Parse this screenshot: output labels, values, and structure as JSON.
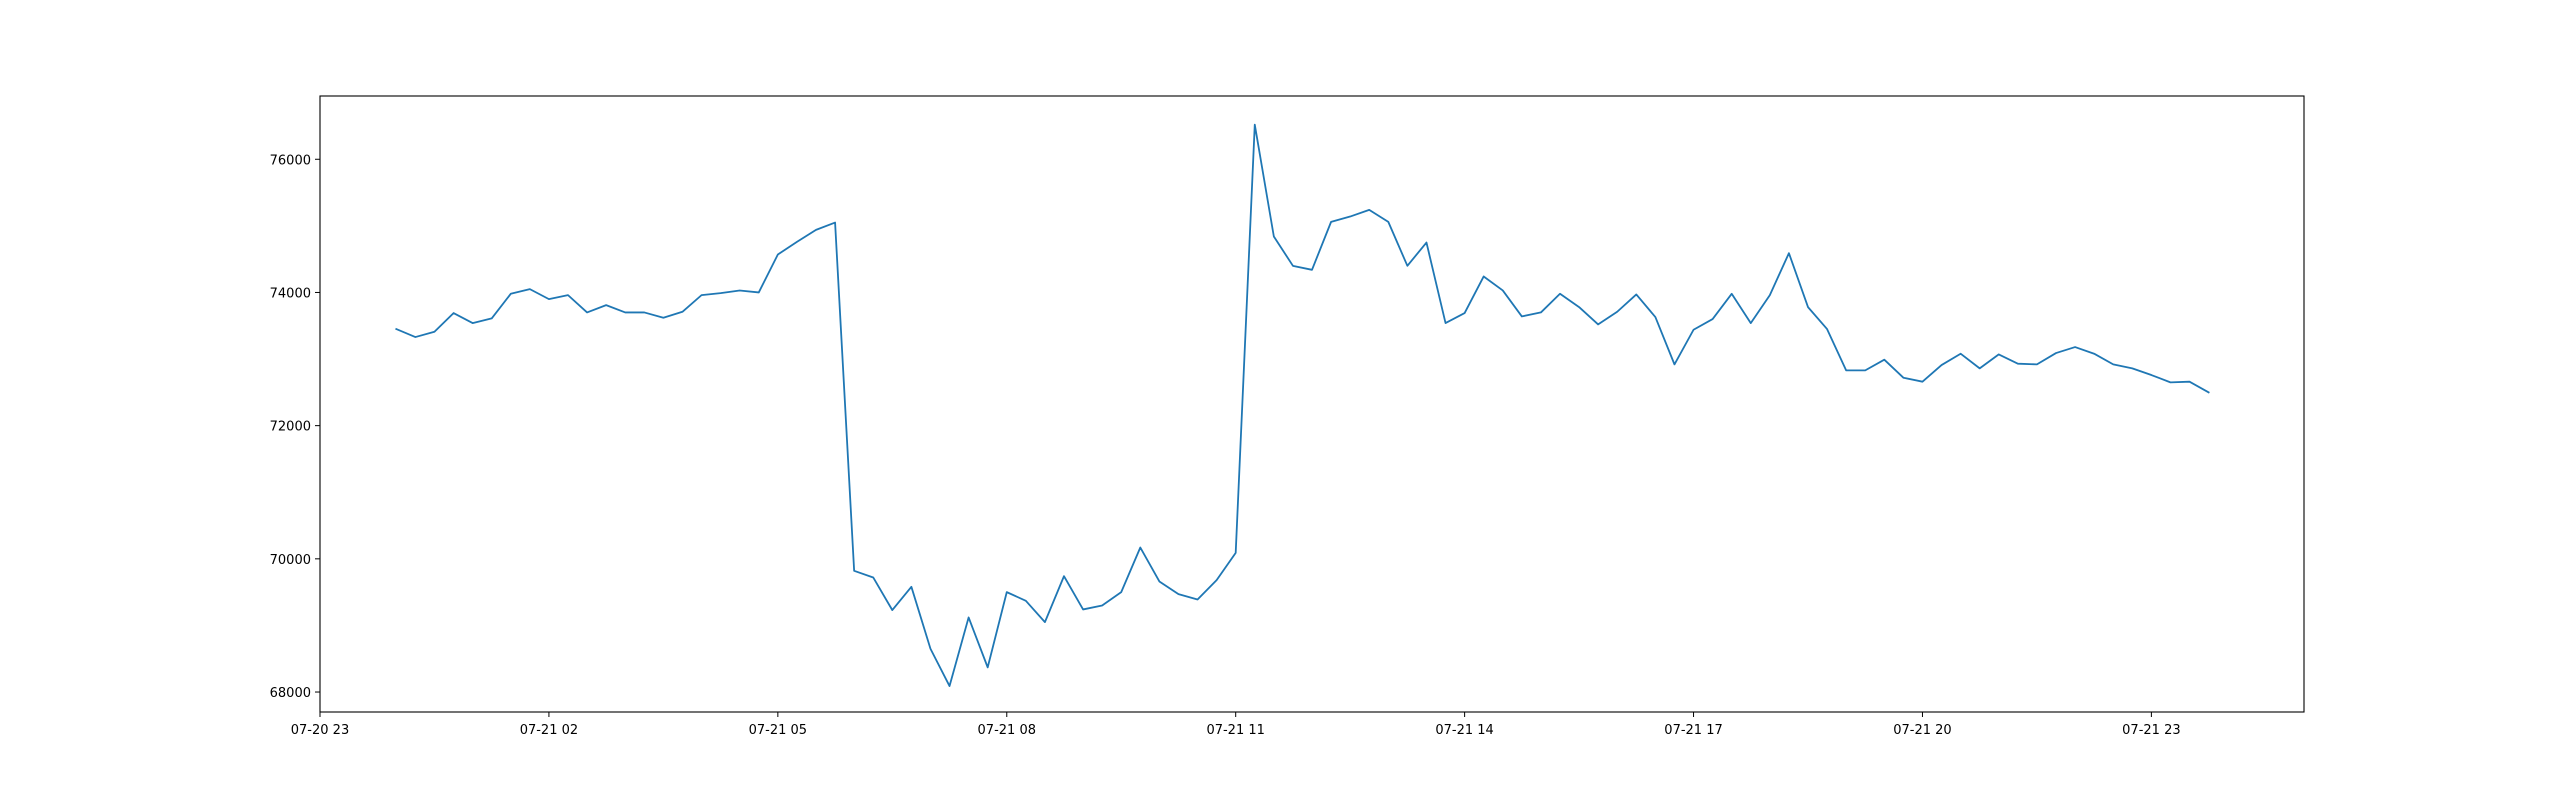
{
  "chart_data": {
    "type": "line",
    "title": "",
    "xlabel": "",
    "ylabel": "",
    "grid": false,
    "legend": "none",
    "line_color": "#1f77b4",
    "xlim": [
      "07-20 23:00",
      "07-22 01:00"
    ],
    "ylim": [
      67700,
      76950
    ],
    "x_ticks": [
      {
        "t": "07-20 23:00",
        "label": "07-20 23"
      },
      {
        "t": "07-21 02:00",
        "label": "07-21 02"
      },
      {
        "t": "07-21 05:00",
        "label": "07-21 05"
      },
      {
        "t": "07-21 08:00",
        "label": "07-21 08"
      },
      {
        "t": "07-21 11:00",
        "label": "07-21 11"
      },
      {
        "t": "07-21 14:00",
        "label": "07-21 14"
      },
      {
        "t": "07-21 17:00",
        "label": "07-21 17"
      },
      {
        "t": "07-21 20:00",
        "label": "07-21 20"
      },
      {
        "t": "07-21 23:00",
        "label": "07-21 23"
      }
    ],
    "y_ticks": [
      {
        "v": 68000,
        "label": "68000"
      },
      {
        "v": 70000,
        "label": "70000"
      },
      {
        "v": 72000,
        "label": "72000"
      },
      {
        "v": 74000,
        "label": "74000"
      },
      {
        "v": 76000,
        "label": "76000"
      }
    ],
    "series": [
      {
        "x": [
          "07-21 00:00",
          "07-21 00:15",
          "07-21 00:30",
          "07-21 00:45",
          "07-21 01:00",
          "07-21 01:15",
          "07-21 01:30",
          "07-21 01:45",
          "07-21 02:00",
          "07-21 02:15",
          "07-21 02:30",
          "07-21 02:45",
          "07-21 03:00",
          "07-21 03:15",
          "07-21 03:30",
          "07-21 03:45",
          "07-21 04:00",
          "07-21 04:15",
          "07-21 04:30",
          "07-21 04:45",
          "07-21 05:00",
          "07-21 05:15",
          "07-21 05:30",
          "07-21 05:45",
          "07-21 06:00",
          "07-21 06:15",
          "07-21 06:30",
          "07-21 06:45",
          "07-21 07:00",
          "07-21 07:15",
          "07-21 07:30",
          "07-21 07:45",
          "07-21 08:00",
          "07-21 08:15",
          "07-21 08:30",
          "07-21 08:45",
          "07-21 09:00",
          "07-21 09:15",
          "07-21 09:30",
          "07-21 09:45",
          "07-21 10:00",
          "07-21 10:15",
          "07-21 10:30",
          "07-21 10:45",
          "07-21 11:00",
          "07-21 11:15",
          "07-21 11:30",
          "07-21 11:45",
          "07-21 12:00",
          "07-21 12:15",
          "07-21 12:30",
          "07-21 12:45",
          "07-21 13:00",
          "07-21 13:15",
          "07-21 13:30",
          "07-21 13:45",
          "07-21 14:00",
          "07-21 14:15",
          "07-21 14:30",
          "07-21 14:45",
          "07-21 15:00",
          "07-21 15:15",
          "07-21 15:30",
          "07-21 15:45",
          "07-21 16:00",
          "07-21 16:15",
          "07-21 16:30",
          "07-21 16:45",
          "07-21 17:00",
          "07-21 17:15",
          "07-21 17:30",
          "07-21 17:45",
          "07-21 18:00",
          "07-21 18:15",
          "07-21 18:30",
          "07-21 18:45",
          "07-21 19:00",
          "07-21 19:15",
          "07-21 19:30",
          "07-21 19:45",
          "07-21 20:00",
          "07-21 20:15",
          "07-21 20:30",
          "07-21 20:45",
          "07-21 21:00",
          "07-21 21:15",
          "07-21 21:30",
          "07-21 21:45",
          "07-21 22:00",
          "07-21 22:15",
          "07-21 22:30",
          "07-21 22:45",
          "07-21 23:00",
          "07-21 23:15",
          "07-21 23:30",
          "07-21 23:45"
        ],
        "y": [
          73450,
          73330,
          73410,
          73690,
          73540,
          73610,
          73980,
          74050,
          73900,
          73960,
          73700,
          73810,
          73700,
          73700,
          73620,
          73710,
          73960,
          73990,
          74030,
          74000,
          74570,
          74760,
          74940,
          75050,
          69820,
          69720,
          69230,
          69580,
          68650,
          68090,
          69120,
          68370,
          69500,
          69370,
          69050,
          69740,
          69240,
          69300,
          69500,
          70170,
          69660,
          69470,
          69390,
          69680,
          70090,
          76520,
          74840,
          74400,
          74340,
          75060,
          75140,
          75240,
          75060,
          74400,
          74750,
          73540,
          73690,
          74240,
          74030,
          73640,
          73700,
          73980,
          73780,
          73520,
          73710,
          73970,
          73630,
          72920,
          73440,
          73600,
          73980,
          73540,
          73960,
          74590,
          73780,
          73450,
          72830,
          72830,
          72990,
          72720,
          72660,
          72910,
          73080,
          72860,
          73070,
          72930,
          72920,
          73090,
          73180,
          73080,
          72920,
          72860,
          72760,
          72650,
          72660,
          72500
        ]
      }
    ]
  }
}
